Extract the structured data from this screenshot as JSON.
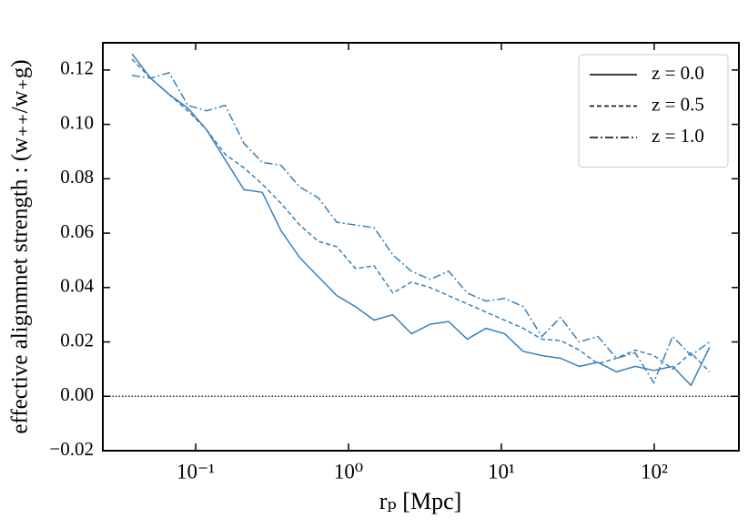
{
  "chart_data": {
    "type": "line",
    "xlabel": "rₚ [Mpc]",
    "ylabel": "effective alignmnet strength : (w₊₊/w₊g)",
    "xscale": "log",
    "xlim": [
      0.0247,
      358
    ],
    "ylim": [
      -0.02,
      0.13
    ],
    "xticks": [
      {
        "value": 0.1,
        "label": "10⁻¹"
      },
      {
        "value": 1,
        "label": "10⁰"
      },
      {
        "value": 10,
        "label": "10¹"
      },
      {
        "value": 100,
        "label": "10²"
      }
    ],
    "yticks": [
      {
        "value": -0.02,
        "label": "−0.02"
      },
      {
        "value": 0,
        "label": "0.00"
      },
      {
        "value": 0.02,
        "label": "0.02"
      },
      {
        "value": 0.04,
        "label": "0.04"
      },
      {
        "value": 0.06,
        "label": "0.06"
      },
      {
        "value": 0.08,
        "label": "0.08"
      },
      {
        "value": 0.1,
        "label": "0.10"
      },
      {
        "value": 0.12,
        "label": "0.12"
      }
    ],
    "hline": 0,
    "legend": "upper right",
    "x": [
      0.0383,
      0.0507,
      0.0671,
      0.0889,
      0.118,
      0.156,
      0.207,
      0.273,
      0.361,
      0.479,
      0.634,
      0.839,
      1.11,
      1.47,
      1.95,
      2.58,
      3.42,
      4.52,
      5.98,
      7.93,
      10.5,
      13.9,
      18.4,
      24.4,
      32.3,
      42.8,
      56.6,
      75.0,
      99.3,
      132,
      174,
      230
    ],
    "series": [
      {
        "name": "z = 0.0",
        "color": "#3a80b8",
        "linestyle": "solid",
        "values": [
          0.126,
          0.117,
          0.111,
          0.106,
          0.098,
          0.087,
          0.076,
          0.075,
          0.061,
          0.051,
          0.044,
          0.037,
          0.033,
          0.028,
          0.03,
          0.023,
          0.0265,
          0.0275,
          0.021,
          0.025,
          0.023,
          0.0165,
          0.015,
          0.014,
          0.011,
          0.0125,
          0.009,
          0.011,
          0.0095,
          0.011,
          0.004,
          0.018
        ]
      },
      {
        "name": "z = 0.5",
        "color": "#3a80b8",
        "linestyle": "dashed",
        "values": [
          0.124,
          0.117,
          0.111,
          0.105,
          0.098,
          0.089,
          0.084,
          0.078,
          0.071,
          0.063,
          0.057,
          0.055,
          0.047,
          0.048,
          0.038,
          0.042,
          0.04,
          0.037,
          0.034,
          0.031,
          0.028,
          0.025,
          0.021,
          0.0205,
          0.017,
          0.012,
          0.014,
          0.017,
          0.015,
          0.01,
          0.016,
          0.009
        ]
      },
      {
        "name": "z = 1.0",
        "color": "#3a80b8",
        "linestyle": "dashdot",
        "values": [
          0.118,
          0.117,
          0.119,
          0.107,
          0.105,
          0.107,
          0.093,
          0.086,
          0.085,
          0.077,
          0.073,
          0.064,
          0.063,
          0.062,
          0.052,
          0.046,
          0.043,
          0.046,
          0.038,
          0.035,
          0.036,
          0.033,
          0.022,
          0.029,
          0.02,
          0.022,
          0.014,
          0.016,
          0.005,
          0.022,
          0.015,
          0.02
        ]
      }
    ]
  }
}
